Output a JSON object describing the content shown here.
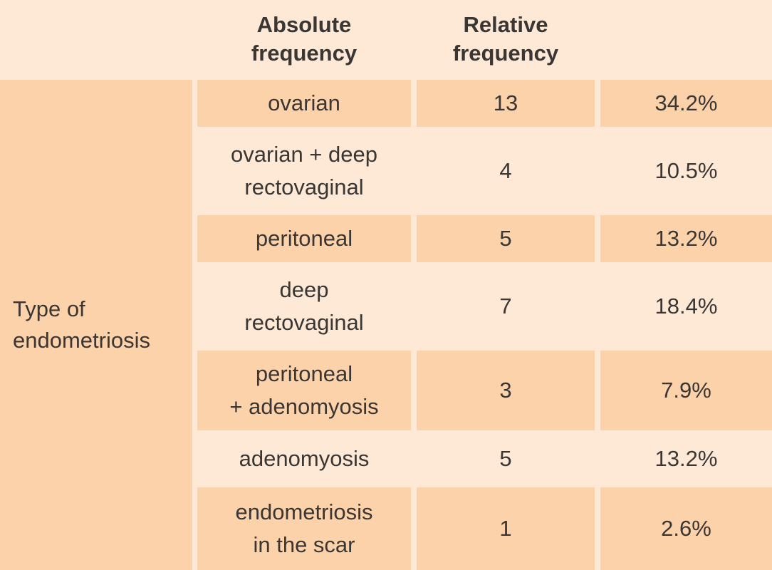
{
  "table": {
    "headers": {
      "absolute": [
        "Absolute",
        "frequency"
      ],
      "relative": [
        "Relative",
        "frequency"
      ]
    },
    "row_label": [
      "Type of",
      "endometriosis"
    ],
    "rows": [
      {
        "type": [
          "ovarian"
        ],
        "absolute": "13",
        "relative": "34.2%"
      },
      {
        "type": [
          "ovarian + deep",
          "rectovaginal"
        ],
        "absolute": "4",
        "relative": "10.5%"
      },
      {
        "type": [
          "peritoneal"
        ],
        "absolute": "5",
        "relative": "13.2%"
      },
      {
        "type": [
          "deep",
          "rectovaginal"
        ],
        "absolute": "7",
        "relative": "18.4%"
      },
      {
        "type": [
          "peritoneal",
          "+ adenomyosis"
        ],
        "absolute": "3",
        "relative": "7.9%"
      },
      {
        "type": [
          "adenomyosis"
        ],
        "absolute": "5",
        "relative": "13.2%"
      },
      {
        "type": [
          "endometriosis",
          "in the scar"
        ],
        "absolute": "1",
        "relative": "2.6%"
      }
    ]
  }
}
